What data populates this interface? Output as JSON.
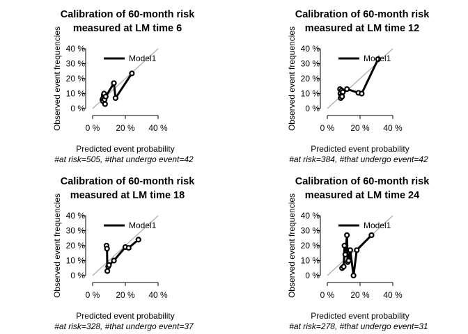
{
  "chart_data": [
    {
      "type": "line",
      "title": [
        "Calibration of 60-month risk",
        "measured at LM time 6"
      ],
      "xlabel": "Predicted event probability",
      "ylabel": "Observed event frequencies",
      "subtitle": "#at risk=505, #that undergo event=42",
      "xlim": [
        0,
        0.4
      ],
      "ylim": [
        0,
        0.4
      ],
      "x_ticks": [
        "0 %",
        "20 %",
        "40 %"
      ],
      "y_ticks": [
        "0 %",
        "10 %",
        "20 %",
        "30 %",
        "40 %"
      ],
      "legend": [
        "Model1"
      ],
      "legend_position": "top-left",
      "reference_line": "diagonal",
      "series": [
        {
          "name": "Model1",
          "points": [
            [
              0.06,
              0.06
            ],
            [
              0.063,
              0.05
            ],
            [
              0.065,
              0.07
            ],
            [
              0.068,
              0.09
            ],
            [
              0.07,
              0.1
            ],
            [
              0.073,
              0.06
            ],
            [
              0.076,
              0.03
            ],
            [
              0.08,
              0.08
            ],
            [
              0.13,
              0.17
            ],
            [
              0.14,
              0.07
            ],
            [
              0.24,
              0.235
            ]
          ]
        }
      ]
    },
    {
      "type": "line",
      "title": [
        "Calibration of 60-month risk",
        "measured at LM time 12"
      ],
      "xlabel": "Predicted event probability",
      "ylabel": "Observed event frequencies",
      "subtitle": "#at risk=384, #that undergo event=42",
      "xlim": [
        0,
        0.4
      ],
      "ylim": [
        0,
        0.4
      ],
      "x_ticks": [
        "0 %",
        "20 %",
        "40 %"
      ],
      "y_ticks": [
        "0 %",
        "10 %",
        "20 %",
        "30 %",
        "40 %"
      ],
      "legend": [
        "Model1"
      ],
      "legend_position": "top-left",
      "reference_line": "diagonal",
      "series": [
        {
          "name": "Model1",
          "points": [
            [
              0.078,
              0.13
            ],
            [
              0.08,
              0.1
            ],
            [
              0.082,
              0.07
            ],
            [
              0.085,
              0.085
            ],
            [
              0.088,
              0.12
            ],
            [
              0.09,
              0.08
            ],
            [
              0.095,
              0.11
            ],
            [
              0.12,
              0.13
            ],
            [
              0.19,
              0.105
            ],
            [
              0.21,
              0.1
            ],
            [
              0.31,
              0.33
            ]
          ]
        }
      ]
    },
    {
      "type": "line",
      "title": [
        "Calibration of 60-month risk",
        "measured at LM time 18"
      ],
      "xlabel": "Predicted event probability",
      "ylabel": "Observed event frequencies",
      "subtitle": "#at risk=328, #that undergo event=37",
      "xlim": [
        0,
        0.4
      ],
      "ylim": [
        0,
        0.4
      ],
      "x_ticks": [
        "0 %",
        "20 %",
        "40 %"
      ],
      "y_ticks": [
        "0 %",
        "10 %",
        "20 %",
        "30 %",
        "40 %"
      ],
      "legend": [
        "Model1"
      ],
      "legend_position": "top-left",
      "reference_line": "diagonal",
      "series": [
        {
          "name": "Model1",
          "points": [
            [
              0.085,
              0.2
            ],
            [
              0.088,
              0.18
            ],
            [
              0.09,
              0.03
            ],
            [
              0.095,
              0.06
            ],
            [
              0.1,
              0.07
            ],
            [
              0.13,
              0.1
            ],
            [
              0.2,
              0.19
            ],
            [
              0.22,
              0.185
            ],
            [
              0.28,
              0.24
            ]
          ]
        }
      ]
    },
    {
      "type": "line",
      "title": [
        "Calibration of 60-month risk",
        "measured at LM time 24"
      ],
      "xlabel": "Predicted event probability",
      "ylabel": "Observed event frequencies",
      "subtitle": "#at risk=278, #that undergo event=31",
      "xlim": [
        0,
        0.4
      ],
      "ylim": [
        0,
        0.4
      ],
      "x_ticks": [
        "0 %",
        "20 %",
        "40 %"
      ],
      "y_ticks": [
        "0 %",
        "10 %",
        "20 %",
        "30 %",
        "40 %"
      ],
      "legend": [
        "Model1"
      ],
      "legend_position": "top-left",
      "reference_line": "diagonal",
      "series": [
        {
          "name": "Model1",
          "points": [
            [
              0.09,
              0.05
            ],
            [
              0.1,
              0.06
            ],
            [
              0.105,
              0.2
            ],
            [
              0.11,
              0.14
            ],
            [
              0.12,
              0.27
            ],
            [
              0.125,
              0.09
            ],
            [
              0.13,
              0.1
            ],
            [
              0.14,
              0.17
            ],
            [
              0.16,
              0.0
            ],
            [
              0.18,
              0.17
            ],
            [
              0.27,
              0.27
            ]
          ]
        }
      ]
    }
  ]
}
